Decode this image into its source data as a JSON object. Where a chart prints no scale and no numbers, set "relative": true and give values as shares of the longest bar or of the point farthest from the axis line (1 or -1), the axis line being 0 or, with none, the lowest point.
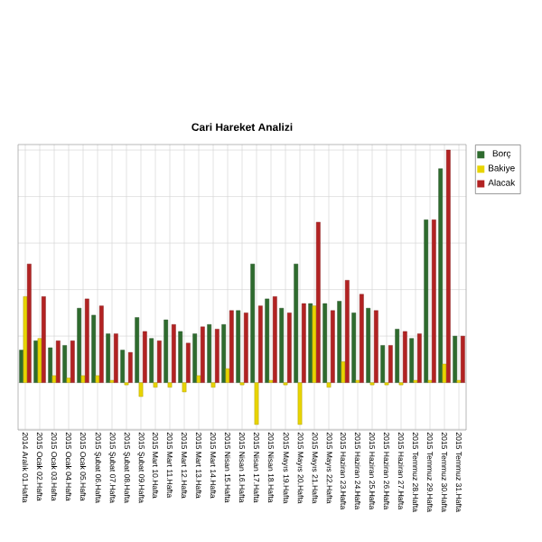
{
  "chart_data": {
    "type": "bar",
    "title": "Cari Hareket Analizi",
    "relative": true,
    "grid": true,
    "legend": "top right",
    "categories": [
      "2014 Aralık 01.Hafta",
      "2015 Ocak 02.Hafta",
      "2015 Ocak 03.Hafta",
      "2015 Ocak 04.Hafta",
      "2015 Ocak 05.Hafta",
      "2015 Şubat 06.Hafta",
      "2015 Şubat 07.Hafta",
      "2015 Şubat 08.Hafta",
      "2015 Şubat 09.Hafta",
      "2015 Mart 10.Hafta",
      "2015 Mart 11.Hafta",
      "2015 Mart 12.Hafta",
      "2015 Mart 13.Hafta",
      "2015 Mart 14.Hafta",
      "2015 Nisan 15.Hafta",
      "2015 Nisan 16.Hafta",
      "2015 Nisan 17.Hafta",
      "2015 Nisan 18.Hafta",
      "2015 Mayıs 19.Hafta",
      "2015 Mayıs 20.Hafta",
      "2015 Mayıs 21.Hafta",
      "2015 Mayıs 22.Hafta",
      "2015 Haziran 23.Hafta",
      "2015 Haziran 24.Hafta",
      "2015 Haziran 25.Hafta",
      "2015 Haziran 26.Hafta",
      "2015 Haziran 27.Hafta",
      "2015 Temmuz 28.Hafta",
      "2015 Temmuz 29.Hafta",
      "2015 Temmuz 30.Hafta",
      "2015 Temmuz 31.Hafta"
    ],
    "series": [
      {
        "name": "Borç",
        "color": "#2e6b2e",
        "values": [
          0.14,
          0.18,
          0.15,
          0.16,
          0.32,
          0.29,
          0.21,
          0.14,
          0.28,
          0.19,
          0.27,
          0.22,
          0.21,
          0.25,
          0.25,
          0.31,
          0.51,
          0.36,
          0.32,
          0.51,
          0.34,
          0.34,
          0.35,
          0.3,
          0.32,
          0.16,
          0.23,
          0.19,
          0.7,
          0.92,
          0.2
        ]
      },
      {
        "name": "Bakiye",
        "color": "#e8d400",
        "values": [
          0.37,
          0.19,
          0.03,
          0.02,
          0.03,
          0.03,
          0.01,
          -0.01,
          -0.06,
          -0.02,
          -0.02,
          -0.04,
          0.03,
          -0.02,
          0.06,
          -0.01,
          -0.18,
          0.01,
          -0.01,
          -0.18,
          0.33,
          -0.02,
          0.09,
          0.01,
          -0.01,
          -0.01,
          -0.01,
          0.01,
          0.01,
          0.08,
          0.01
        ]
      },
      {
        "name": "Alacak",
        "color": "#b22222",
        "values": [
          0.51,
          0.37,
          0.18,
          0.18,
          0.36,
          0.33,
          0.21,
          0.13,
          0.22,
          0.18,
          0.25,
          0.17,
          0.24,
          0.23,
          0.31,
          0.3,
          0.33,
          0.37,
          0.3,
          0.34,
          0.69,
          0.31,
          0.44,
          0.38,
          0.31,
          0.16,
          0.22,
          0.21,
          0.7,
          1,
          0.2
        ]
      }
    ]
  }
}
